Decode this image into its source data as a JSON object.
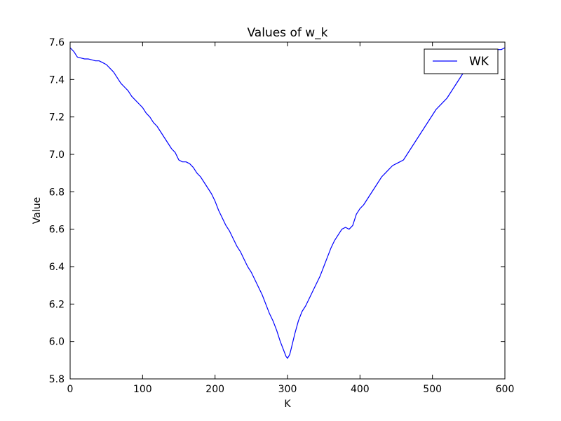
{
  "chart_data": {
    "type": "line",
    "title": "Values of w_k",
    "xlabel": "K",
    "ylabel": "Value",
    "xlim": [
      0,
      600
    ],
    "ylim": [
      5.8,
      7.6
    ],
    "xticks": [
      0,
      100,
      200,
      300,
      400,
      500,
      600
    ],
    "yticks": [
      5.8,
      6.0,
      6.2,
      6.4,
      6.6,
      6.8,
      7.0,
      7.2,
      7.4,
      7.6
    ],
    "xtick_labels": [
      "0",
      "100",
      "200",
      "300",
      "400",
      "500",
      "600"
    ],
    "ytick_labels": [
      "5.8",
      "6.0",
      "6.2",
      "6.4",
      "6.6",
      "6.8",
      "7.0",
      "7.2",
      "7.4",
      "7.6"
    ],
    "grid": false,
    "legend_position": "top-right",
    "series": [
      {
        "name": "WK",
        "color": "#0000ff",
        "x": [
          0,
          5,
          10,
          15,
          20,
          25,
          30,
          35,
          40,
          45,
          50,
          55,
          60,
          65,
          70,
          75,
          80,
          85,
          90,
          95,
          100,
          105,
          110,
          115,
          120,
          125,
          130,
          135,
          140,
          145,
          150,
          155,
          160,
          165,
          170,
          175,
          180,
          185,
          190,
          195,
          200,
          205,
          210,
          215,
          220,
          225,
          230,
          235,
          240,
          245,
          250,
          255,
          260,
          265,
          270,
          275,
          280,
          285,
          290,
          295,
          298,
          300,
          303,
          305,
          310,
          315,
          320,
          325,
          330,
          335,
          340,
          345,
          350,
          355,
          360,
          365,
          370,
          375,
          380,
          385,
          390,
          395,
          400,
          405,
          410,
          415,
          420,
          425,
          430,
          435,
          440,
          445,
          450,
          455,
          460,
          465,
          470,
          475,
          480,
          485,
          490,
          495,
          500,
          505,
          510,
          515,
          520,
          525,
          530,
          535,
          540,
          545,
          550,
          555,
          560,
          565,
          570,
          575,
          580,
          585,
          590,
          595,
          600
        ],
        "y": [
          7.57,
          7.55,
          7.52,
          7.515,
          7.51,
          7.51,
          7.505,
          7.5,
          7.5,
          7.49,
          7.48,
          7.46,
          7.44,
          7.41,
          7.38,
          7.36,
          7.34,
          7.31,
          7.29,
          7.27,
          7.25,
          7.22,
          7.2,
          7.17,
          7.15,
          7.12,
          7.09,
          7.06,
          7.03,
          7.01,
          6.97,
          6.96,
          6.96,
          6.95,
          6.93,
          6.9,
          6.88,
          6.85,
          6.82,
          6.79,
          6.75,
          6.7,
          6.66,
          6.62,
          6.59,
          6.55,
          6.51,
          6.48,
          6.44,
          6.4,
          6.37,
          6.33,
          6.29,
          6.25,
          6.2,
          6.15,
          6.11,
          6.06,
          6.0,
          5.95,
          5.92,
          5.91,
          5.93,
          5.96,
          6.04,
          6.11,
          6.16,
          6.19,
          6.23,
          6.27,
          6.31,
          6.35,
          6.4,
          6.45,
          6.5,
          6.54,
          6.57,
          6.6,
          6.61,
          6.6,
          6.62,
          6.68,
          6.71,
          6.73,
          6.76,
          6.79,
          6.82,
          6.85,
          6.88,
          6.9,
          6.92,
          6.94,
          6.95,
          6.96,
          6.97,
          7.0,
          7.03,
          7.06,
          7.09,
          7.12,
          7.15,
          7.18,
          7.21,
          7.24,
          7.26,
          7.28,
          7.3,
          7.33,
          7.36,
          7.39,
          7.42,
          7.45,
          7.48,
          7.5,
          7.52,
          7.53,
          7.54,
          7.545,
          7.55,
          7.555,
          7.56,
          7.56,
          7.57
        ]
      }
    ]
  }
}
